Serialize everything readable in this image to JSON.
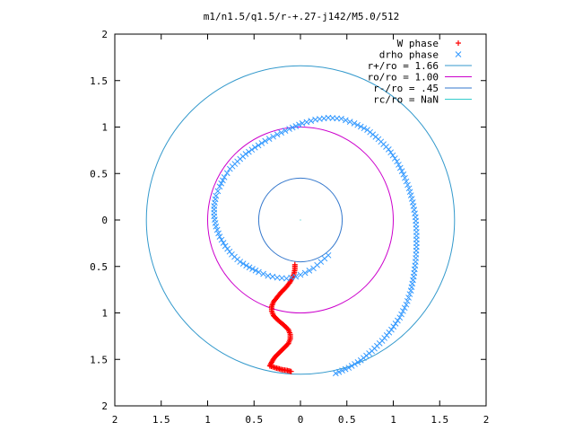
{
  "chart_data": {
    "type": "scatter",
    "title": "m1/n1.5/q1.5/r-+.27-j142/M5.0/512",
    "xlim": [
      -2,
      2
    ],
    "ylim": [
      -2,
      2
    ],
    "x_ticks": [
      {
        "value": -2,
        "label": "2"
      },
      {
        "value": -1.5,
        "label": "1.5"
      },
      {
        "value": -1,
        "label": "1"
      },
      {
        "value": -0.5,
        "label": "0.5"
      },
      {
        "value": 0,
        "label": "0"
      },
      {
        "value": 0.5,
        "label": "0.5"
      },
      {
        "value": 1,
        "label": "1"
      },
      {
        "value": 1.5,
        "label": "1.5"
      },
      {
        "value": 2,
        "label": "2"
      }
    ],
    "y_ticks": [
      {
        "value": 2,
        "label": "2"
      },
      {
        "value": 1.5,
        "label": "1.5"
      },
      {
        "value": 1,
        "label": "1"
      },
      {
        "value": 0.5,
        "label": "0.5"
      },
      {
        "value": 0,
        "label": "0"
      },
      {
        "value": -0.5,
        "label": "0.5"
      },
      {
        "value": -1,
        "label": "1"
      },
      {
        "value": -1.5,
        "label": "1.5"
      },
      {
        "value": -2,
        "label": "2"
      }
    ],
    "legend_position": "top-right",
    "grid": false,
    "series": [
      {
        "name": "W phase",
        "style": "points",
        "marker": "+",
        "color": "#ff0000",
        "points": [
          [
            -0.06,
            -0.48
          ],
          [
            -0.06,
            -0.53
          ],
          [
            -0.07,
            -0.58
          ],
          [
            -0.09,
            -0.63
          ],
          [
            -0.12,
            -0.68
          ],
          [
            -0.16,
            -0.73
          ],
          [
            -0.21,
            -0.78
          ],
          [
            -0.25,
            -0.83
          ],
          [
            -0.29,
            -0.88
          ],
          [
            -0.31,
            -0.93
          ],
          [
            -0.31,
            -0.98
          ],
          [
            -0.29,
            -1.03
          ],
          [
            -0.24,
            -1.08
          ],
          [
            -0.18,
            -1.13
          ],
          [
            -0.13,
            -1.18
          ],
          [
            -0.11,
            -1.23
          ],
          [
            -0.11,
            -1.28
          ],
          [
            -0.13,
            -1.33
          ],
          [
            -0.18,
            -1.38
          ],
          [
            -0.23,
            -1.43
          ],
          [
            -0.28,
            -1.48
          ],
          [
            -0.31,
            -1.53
          ],
          [
            -0.33,
            -1.57
          ],
          [
            -0.27,
            -1.59
          ],
          [
            -0.2,
            -1.61
          ],
          [
            -0.14,
            -1.62
          ],
          [
            -0.1,
            -1.63
          ]
        ]
      },
      {
        "name": "drho phase",
        "style": "points",
        "marker": "x",
        "color": "#3399ff",
        "points": [
          [
            0.3,
            -0.38
          ],
          [
            0.22,
            -0.45
          ],
          [
            0.14,
            -0.52
          ],
          [
            0.05,
            -0.57
          ],
          [
            -0.05,
            -0.61
          ],
          [
            -0.15,
            -0.63
          ],
          [
            -0.25,
            -0.62
          ],
          [
            -0.35,
            -0.6
          ],
          [
            -0.45,
            -0.56
          ],
          [
            -0.55,
            -0.51
          ],
          [
            -0.65,
            -0.45
          ],
          [
            -0.74,
            -0.37
          ],
          [
            -0.81,
            -0.28
          ],
          [
            -0.87,
            -0.18
          ],
          [
            -0.91,
            -0.07
          ],
          [
            -0.93,
            0.04
          ],
          [
            -0.93,
            0.15
          ],
          [
            -0.91,
            0.26
          ],
          [
            -0.87,
            0.36
          ],
          [
            -0.82,
            0.46
          ],
          [
            -0.76,
            0.55
          ],
          [
            -0.68,
            0.63
          ],
          [
            -0.59,
            0.71
          ],
          [
            -0.49,
            0.78
          ],
          [
            -0.38,
            0.85
          ],
          [
            -0.25,
            0.92
          ],
          [
            -0.12,
            0.98
          ],
          [
            0.02,
            1.04
          ],
          [
            0.16,
            1.08
          ],
          [
            0.3,
            1.1
          ],
          [
            0.44,
            1.09
          ],
          [
            0.58,
            1.04
          ],
          [
            0.72,
            0.97
          ],
          [
            0.84,
            0.87
          ],
          [
            0.95,
            0.76
          ],
          [
            1.04,
            0.63
          ],
          [
            1.11,
            0.49
          ],
          [
            1.17,
            0.34
          ],
          [
            1.21,
            0.19
          ],
          [
            1.24,
            0.03
          ],
          [
            1.25,
            -0.13
          ],
          [
            1.25,
            -0.29
          ],
          [
            1.24,
            -0.45
          ],
          [
            1.22,
            -0.61
          ],
          [
            1.19,
            -0.76
          ],
          [
            1.14,
            -0.91
          ],
          [
            1.07,
            -1.05
          ],
          [
            0.98,
            -1.18
          ],
          [
            0.88,
            -1.3
          ],
          [
            0.77,
            -1.41
          ],
          [
            0.65,
            -1.51
          ],
          [
            0.52,
            -1.59
          ],
          [
            0.38,
            -1.65
          ]
        ]
      },
      {
        "name": "r+/ro = 1.66",
        "style": "line",
        "color": "#3399cc",
        "radius": 1.66
      },
      {
        "name": "ro/ro = 1.00",
        "style": "line",
        "color": "#cc00cc",
        "radius": 1.0
      },
      {
        "name": "r-/ro = .45",
        "style": "line",
        "color": "#3377cc",
        "radius": 0.45
      },
      {
        "name": "rc/ro = NaN",
        "style": "line",
        "color": "#33cccc",
        "radius": null
      }
    ]
  }
}
